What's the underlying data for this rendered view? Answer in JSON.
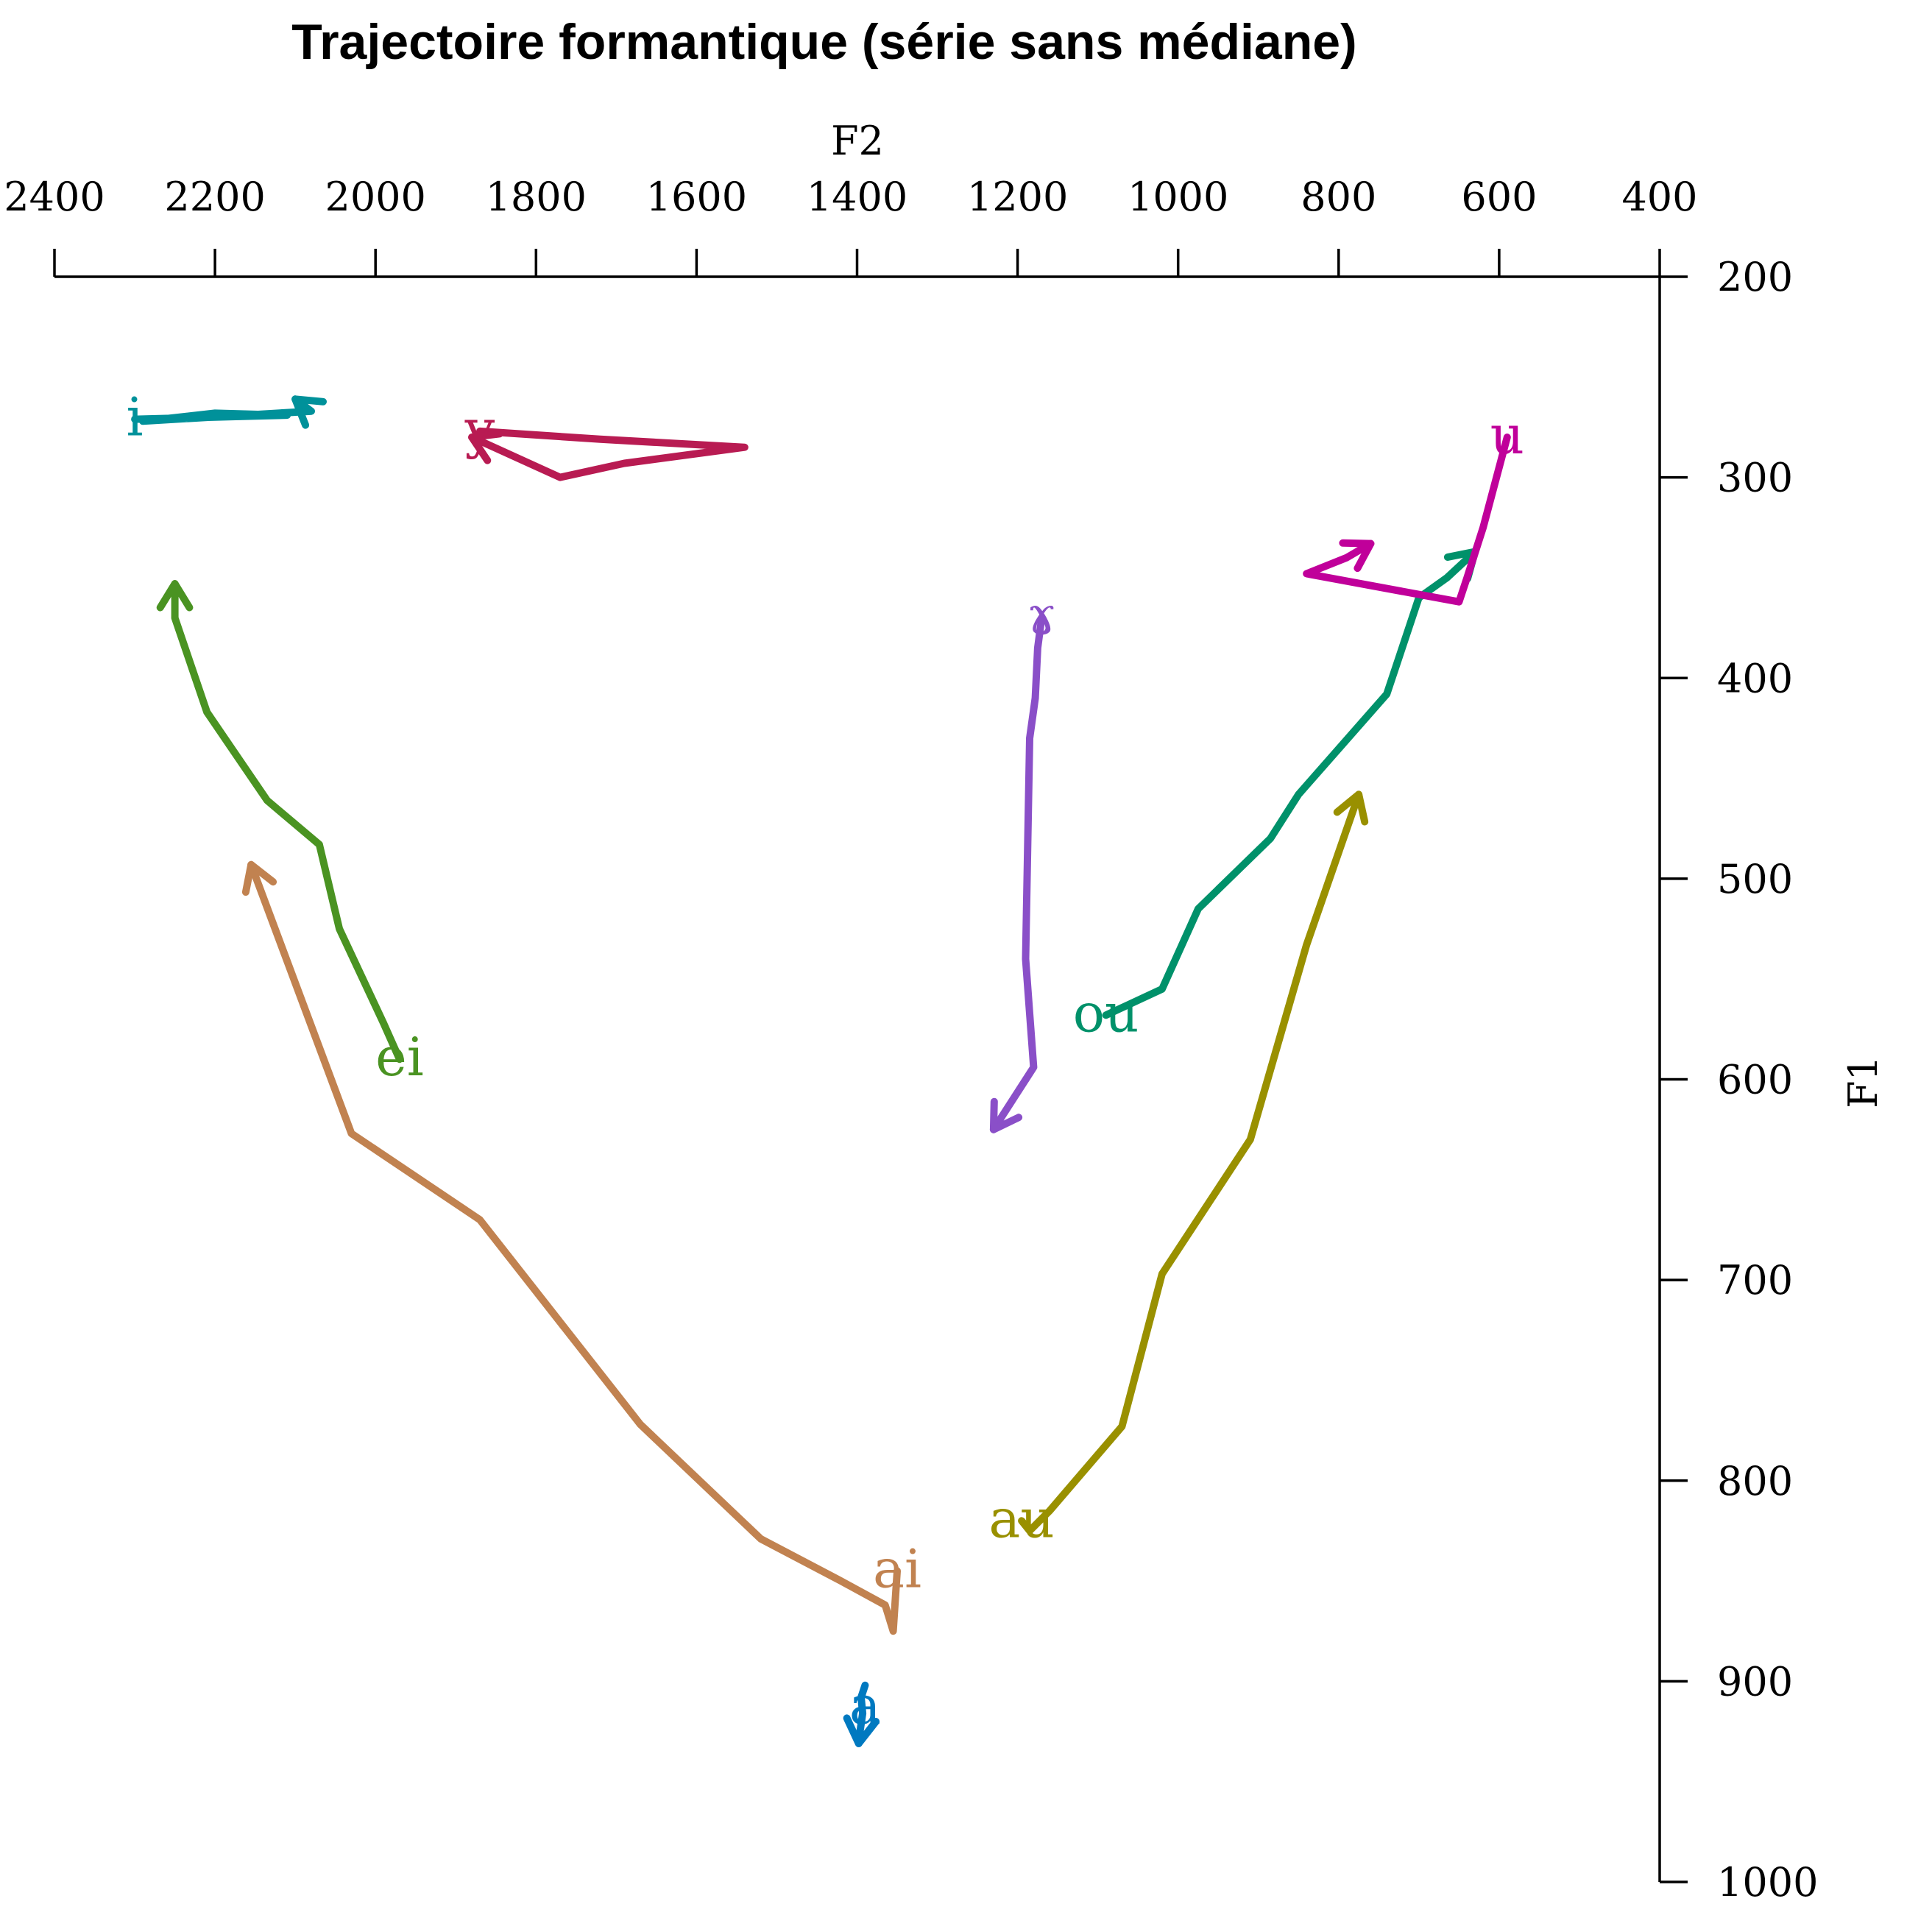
{
  "chart_data": {
    "type": "line",
    "title": "Trajectoire formantique (série sans médiane)",
    "xlabel": "F2",
    "ylabel": "F1",
    "xlim": [
      2400,
      400
    ],
    "ylim": [
      200,
      1000
    ],
    "x_reversed": true,
    "y_reversed": true,
    "x_axis_position": "top",
    "y_axis_position": "right",
    "xticks": [
      2400,
      2200,
      2000,
      1800,
      1600,
      1400,
      1200,
      1000,
      800,
      600,
      400
    ],
    "yticks": [
      200,
      300,
      400,
      500,
      600,
      700,
      800,
      900,
      1000
    ],
    "grid": false,
    "legend": "none",
    "series": [
      {
        "name": "ei",
        "color": "#4a9322",
        "x": [
          1970,
          1990,
          2045,
          2070,
          2135,
          2210,
          2250,
          2250
        ],
        "y": [
          590,
          572,
          525,
          483,
          461,
          417,
          370,
          353
        ]
      },
      {
        "name": "ai",
        "color": "#c18250",
        "x": [
          1350,
          1355,
          1365,
          1420,
          1520,
          1670,
          1870,
          2030,
          2155
        ],
        "y": [
          845,
          875,
          862,
          850,
          829,
          772,
          670,
          627,
          493
        ]
      },
      {
        "name": "au",
        "color": "#999000",
        "x": [
          1195,
          1185,
          1160,
          1070,
          1020,
          910,
          840,
          775
        ],
        "y": [
          820,
          825,
          815,
          773,
          697,
          630,
          533,
          458
        ]
      },
      {
        "name": "ou",
        "color": "#00916a",
        "x": [
          1090,
          1020,
          975,
          885,
          850,
          740,
          700,
          665,
          630
        ],
        "y": [
          568,
          555,
          515,
          480,
          458,
          408,
          360,
          350,
          337
        ]
      },
      {
        "name": "u",
        "color": "#c0009a",
        "x": [
          590,
          620,
          640,
          650,
          840,
          790,
          760
        ],
        "y": [
          280,
          325,
          350,
          362,
          348,
          340,
          333
        ]
      },
      {
        "name": "ɤ",
        "color": "#8a4fc8",
        "x": [
          1170,
          1175,
          1178,
          1185,
          1190,
          1180,
          1230
        ],
        "y": [
          370,
          385,
          410,
          430,
          540,
          594,
          625
        ]
      },
      {
        "name": "y",
        "color": "#b81b52",
        "x": [
          1870,
          1720,
          1540,
          1690,
          1770,
          1880
        ],
        "y": [
          277,
          281,
          285,
          293,
          300,
          280
        ]
      },
      {
        "name": "i",
        "color": "#00919a",
        "x": [
          2300,
          2110,
          2200,
          2290,
          2080,
          2100
        ],
        "y": [
          271,
          269,
          268,
          272,
          267,
          261
        ]
      },
      {
        "name": "a",
        "color": "#0079c0",
        "x": [
          1390,
          1395,
          1393,
          1396,
          1398
        ],
        "y": [
          902,
          908,
          916,
          924,
          931
        ]
      }
    ],
    "annotations": [
      {
        "text": "ei",
        "x": 1970,
        "y": 590
      },
      {
        "text": "ai",
        "x": 1350,
        "y": 845
      },
      {
        "text": "au",
        "x": 1195,
        "y": 820
      },
      {
        "text": "ou",
        "x": 1090,
        "y": 568
      },
      {
        "text": "u",
        "x": 590,
        "y": 280
      },
      {
        "text": "ɤ",
        "x": 1170,
        "y": 370
      },
      {
        "text": "y",
        "x": 1870,
        "y": 277
      },
      {
        "text": "i",
        "x": 2300,
        "y": 271
      },
      {
        "text": "a",
        "x": 1390,
        "y": 913
      }
    ]
  }
}
